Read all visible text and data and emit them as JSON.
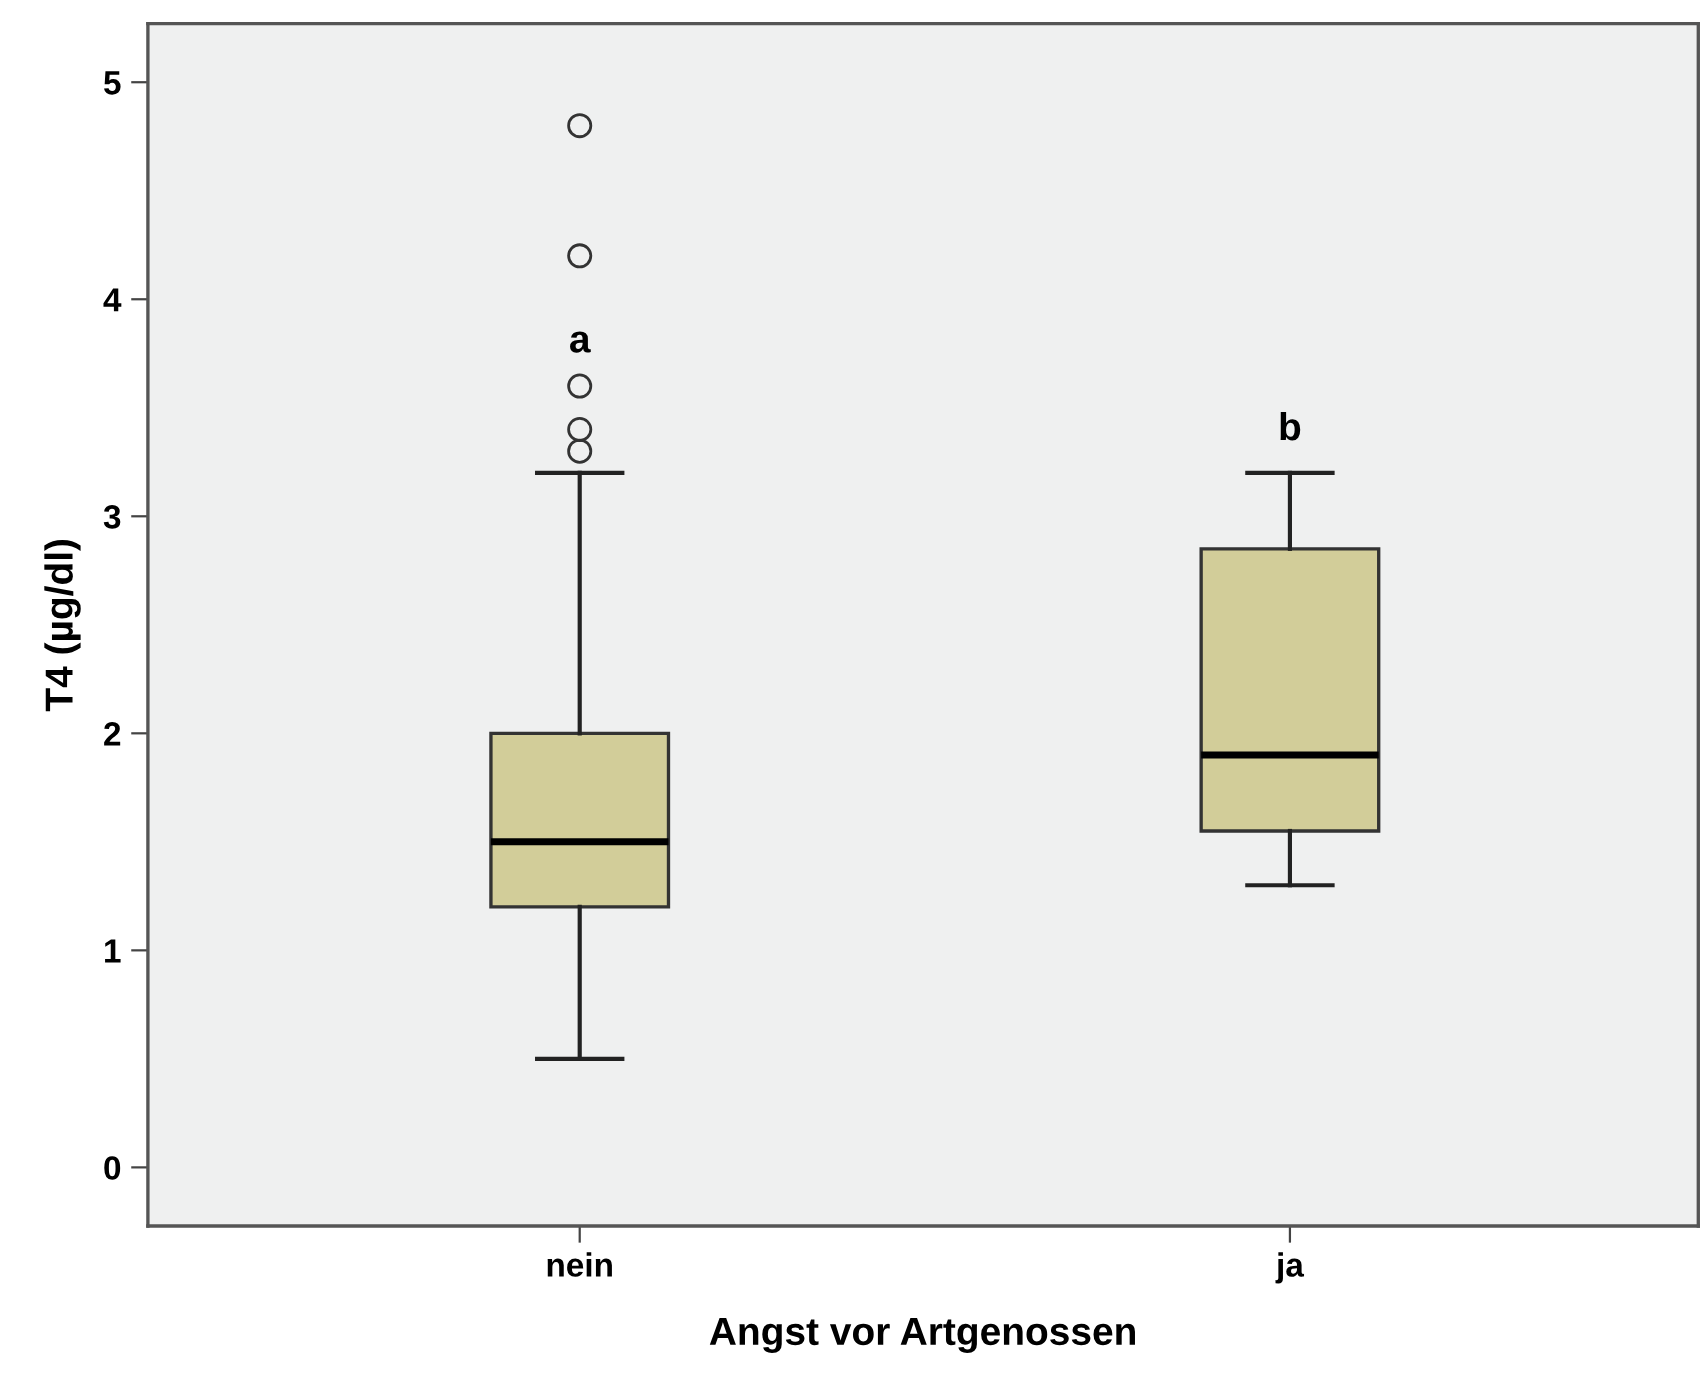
{
  "chart_data": {
    "type": "box",
    "xlabel": "Angst vor Artgenossen",
    "ylabel": "T4 (µg/dl)",
    "categories": [
      "nein",
      "ja"
    ],
    "boxes": [
      {
        "low": 0.5,
        "q1": 1.2,
        "median": 1.5,
        "q3": 2.0,
        "high": 3.2,
        "outliers": [
          3.3,
          3.4,
          3.6,
          4.2,
          4.8
        ]
      },
      {
        "low": 1.3,
        "q1": 1.55,
        "median": 1.9,
        "q3": 2.85,
        "high": 3.2
      }
    ],
    "color": "#d2cd99",
    "ylim": [
      -0.27,
      5.27
    ],
    "yticks": [
      0,
      1,
      2,
      3,
      4,
      5
    ],
    "grid": false,
    "annotations": [
      "a",
      "b"
    ]
  }
}
